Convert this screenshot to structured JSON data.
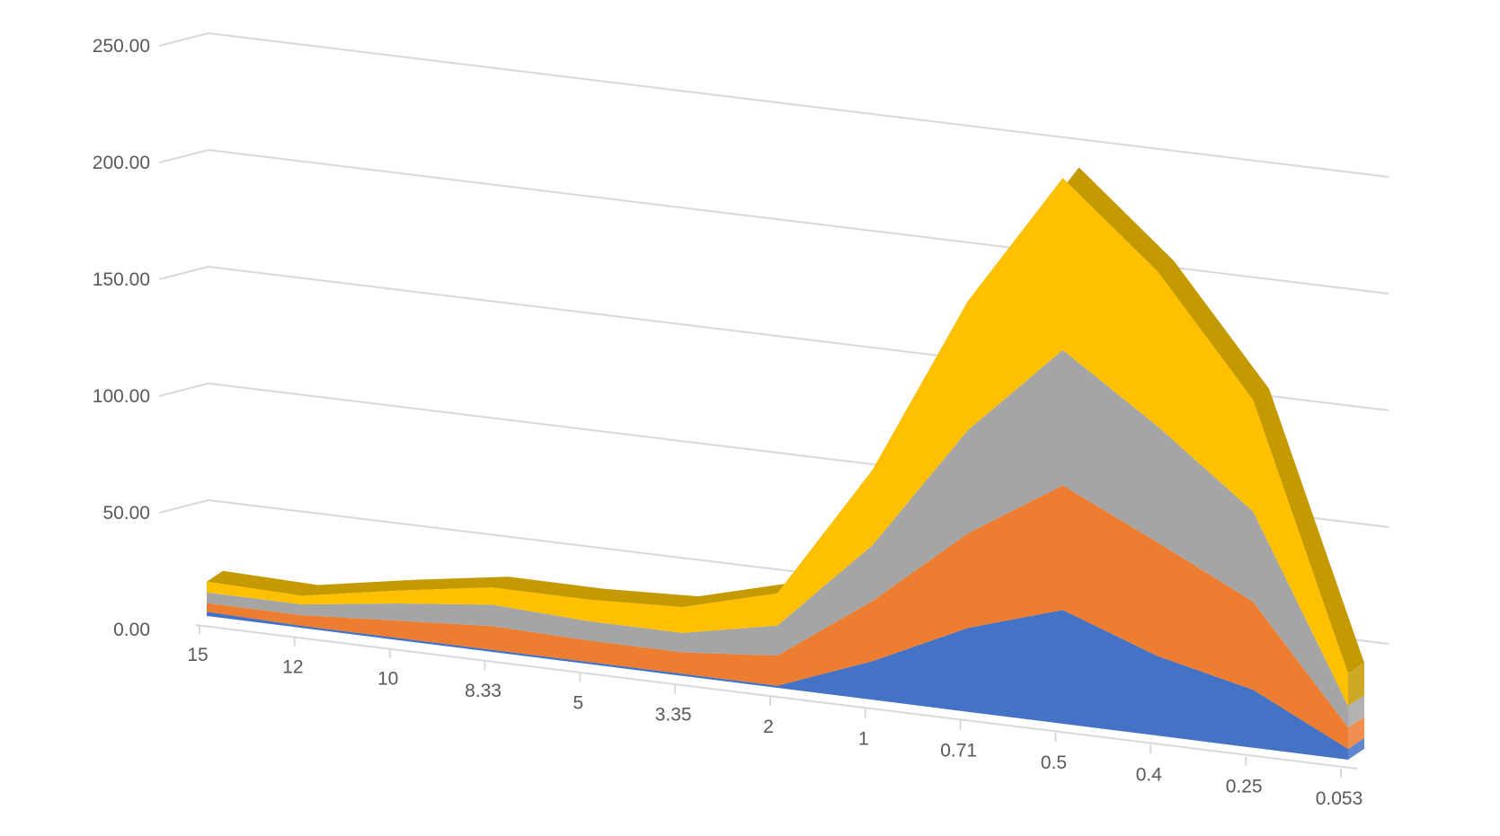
{
  "chart_data": {
    "type": "area",
    "subtype": "3d-stacked",
    "title": "",
    "xlabel": "",
    "ylabel": "",
    "categories": [
      "15",
      "12",
      "10",
      "8.33",
      "5",
      "3.35",
      "2",
      "1",
      "0.71",
      "0.5",
      "0.4",
      "0.25",
      "0.053"
    ],
    "y_tick_labels": [
      "0.00",
      "50.00",
      "100.00",
      "150.00",
      "200.00",
      "250.00"
    ],
    "ylim": [
      0,
      250
    ],
    "grid": true,
    "legend": "none",
    "series": [
      {
        "values": [
          2,
          1,
          1,
          1,
          1,
          1,
          1,
          18,
          39,
          53,
          37,
          27,
          5
        ],
        "color": "#4472c4"
      },
      {
        "values": [
          4,
          5,
          8,
          11,
          10,
          10,
          14,
          28,
          44,
          58,
          53,
          41,
          10
        ],
        "color": "#ed7d31"
      },
      {
        "values": [
          5,
          5,
          8,
          10,
          9,
          9,
          14,
          26,
          48,
          63,
          54,
          42,
          10
        ],
        "color": "#a5a5a5"
      },
      {
        "values": [
          5,
          4,
          6,
          8,
          10,
          12,
          15,
          35,
          60,
          80,
          72,
          52,
          15
        ],
        "color": "#ffc000",
        "top_color": "#c49a00"
      }
    ]
  }
}
